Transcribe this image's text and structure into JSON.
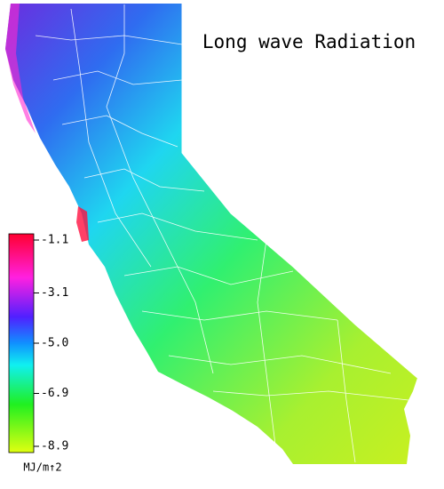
{
  "map": {
    "title": "Long wave Radiation",
    "legend": {
      "lim": [
        -1.1,
        -8.9
      ],
      "ticks": [
        -1.1,
        -3.1,
        {
          "value": -5,
          "label": "-5.0"
        },
        -6.9,
        -8.9
      ],
      "unit": "MJ/m↑2"
    }
  }
}
